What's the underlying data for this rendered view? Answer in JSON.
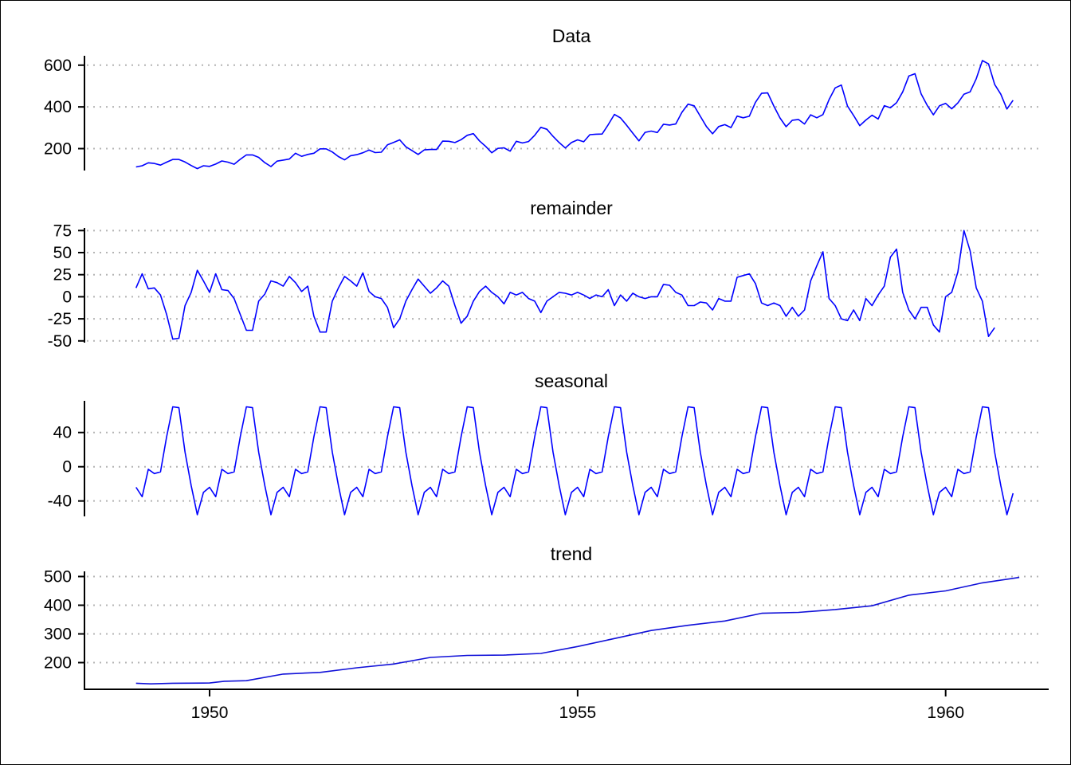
{
  "chart_data": [
    {
      "type": "line",
      "title": "Data",
      "yticks": [
        200,
        400,
        600
      ],
      "ylim": [
        95,
        645
      ],
      "grid": "horizontal-dotted",
      "color": "#0000ff",
      "x_start": 1949.0,
      "x_step": 0.08333,
      "values": [
        112,
        118,
        132,
        129,
        121,
        135,
        148,
        148,
        136,
        119,
        104,
        118,
        115,
        126,
        141,
        135,
        125,
        149,
        170,
        170,
        158,
        133,
        114,
        140,
        145,
        150,
        178,
        163,
        172,
        178,
        199,
        199,
        184,
        162,
        146,
        166,
        171,
        180,
        193,
        181,
        183,
        218,
        230,
        242,
        209,
        191,
        172,
        194,
        196,
        196,
        236,
        235,
        229,
        243,
        264,
        272,
        237,
        211,
        180,
        201,
        204,
        188,
        235,
        227,
        234,
        264,
        302,
        293,
        259,
        229,
        203,
        229,
        242,
        233,
        267,
        269,
        270,
        315,
        364,
        347,
        312,
        274,
        237,
        278,
        284,
        277,
        317,
        313,
        318,
        374,
        413,
        405,
        355,
        306,
        271,
        306,
        315,
        301,
        356,
        348,
        355,
        422,
        465,
        467,
        404,
        347,
        305,
        336,
        340,
        318,
        362,
        348,
        363,
        435,
        491,
        505,
        404,
        359,
        310,
        337,
        360,
        342,
        406,
        396,
        420,
        472,
        548,
        559,
        463,
        407,
        362,
        405,
        417,
        391,
        419,
        461,
        472,
        535,
        622,
        606,
        508,
        461,
        390,
        432
      ]
    },
    {
      "type": "line",
      "title": "remainder",
      "yticks": [
        -50,
        -25,
        0,
        25,
        50,
        75
      ],
      "ylim": [
        -52,
        78
      ],
      "grid": "horizontal-dotted",
      "color": "#0000ff",
      "x_start": 1949.0,
      "x_step": 0.08333,
      "values": [
        10,
        26,
        9,
        10,
        2,
        -20,
        -48,
        -47,
        -10,
        5,
        30,
        18,
        5,
        26,
        8,
        7,
        -2,
        -20,
        -38,
        -38,
        -5,
        3,
        18,
        16,
        12,
        23,
        16,
        6,
        12,
        -22,
        -40,
        -40,
        -5,
        10,
        23,
        18,
        12,
        27,
        6,
        0,
        -2,
        -12,
        -35,
        -25,
        -5,
        8,
        20,
        12,
        4,
        10,
        18,
        12,
        -10,
        -30,
        -22,
        -5,
        6,
        12,
        5,
        0,
        -8,
        5,
        2,
        5,
        -2,
        -5,
        -18,
        -5,
        0,
        5,
        4,
        2,
        5,
        2,
        -2,
        2,
        0,
        8,
        -10,
        2,
        -5,
        4,
        0,
        -2,
        0,
        0,
        14,
        13,
        5,
        2,
        -10,
        -10,
        -6,
        -7,
        -15,
        -2,
        -5,
        -5,
        22,
        24,
        26,
        15,
        -7,
        -10,
        -7,
        -10,
        -22,
        -12,
        -22,
        -15,
        18,
        35,
        51,
        -2,
        -10,
        -25,
        -27,
        -15,
        -27,
        -2,
        -10,
        2,
        12,
        45,
        54,
        5,
        -15,
        -25,
        -12,
        -12,
        -32,
        -40,
        0,
        5,
        28,
        75,
        52,
        10,
        -5,
        -45,
        -35
      ]
    },
    {
      "type": "line",
      "title": "seasonal",
      "yticks": [
        40,
        0,
        -40
      ],
      "ylim": [
        -58,
        77
      ],
      "grid": "horizontal-dotted",
      "color": "#0000ff",
      "x_start": 1949.0,
      "x_step": 0.08333,
      "period_values": [
        -24,
        -35,
        -3,
        -8,
        -6,
        35,
        70,
        69,
        17,
        -22,
        -56,
        -30
      ],
      "periods": 12,
      "last_period_length": 11,
      "last_value": -31
    },
    {
      "type": "line",
      "title": "trend",
      "yticks": [
        200,
        300,
        400,
        500
      ],
      "xticks": [
        1950,
        1955,
        1960
      ],
      "xlim": [
        1948.3,
        1961.4
      ],
      "ylim": [
        107,
        518
      ],
      "grid": "horizontal-dotted",
      "color": "#1010d8",
      "x": [
        1949.0,
        1949.2,
        1949.5,
        1950.0,
        1950.2,
        1950.5,
        1951.0,
        1951.5,
        1952.0,
        1952.5,
        1953.0,
        1953.5,
        1954.0,
        1954.5,
        1955.0,
        1955.5,
        1956.0,
        1956.5,
        1957.0,
        1957.5,
        1958.0,
        1958.5,
        1959.0,
        1959.5,
        1960.0,
        1960.5,
        1961.0
      ],
      "values": [
        128,
        126,
        128,
        129,
        135,
        137,
        160,
        166,
        182,
        195,
        218,
        225,
        226,
        232,
        256,
        284,
        312,
        330,
        345,
        372,
        375,
        385,
        398,
        435,
        450,
        478,
        497
      ]
    }
  ]
}
